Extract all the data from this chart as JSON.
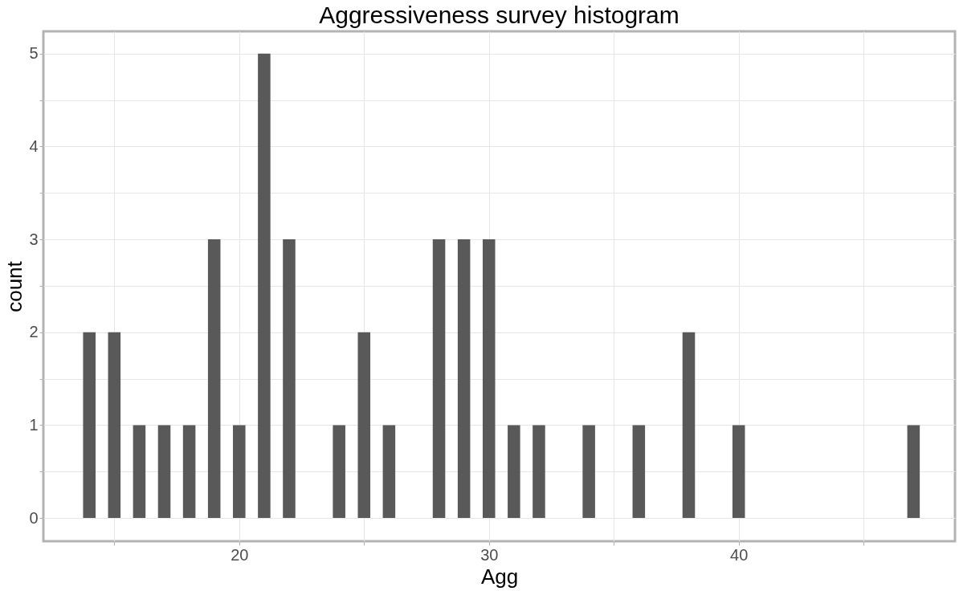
{
  "chart_data": {
    "type": "histogram",
    "title": "Aggressiveness survey histogram",
    "xlabel": "Agg",
    "ylabel": "count",
    "color": "#595959",
    "bins": [
      13.75,
      14.25,
      14.75,
      15.25,
      15.75,
      16.25,
      16.75,
      17.25,
      17.75,
      18.25,
      18.75,
      19.25,
      19.75,
      20.25,
      20.75,
      21.25,
      21.75,
      22.25,
      22.75,
      23.25,
      23.75,
      24.25,
      24.75,
      25.25,
      25.75,
      26.25,
      26.75,
      27.25,
      27.75,
      28.25,
      28.75,
      29.25,
      29.75,
      30.25,
      30.75,
      31.25,
      31.75,
      32.25,
      32.75,
      33.25,
      33.75,
      34.25,
      34.75,
      35.25,
      35.75,
      36.25,
      36.75,
      37.25,
      37.75,
      38.25,
      38.75,
      39.25,
      39.75,
      40.25,
      40.75,
      41.25,
      41.75,
      42.25,
      42.75,
      43.25,
      43.75,
      44.25,
      44.75,
      45.25,
      45.75,
      46.25,
      46.75,
      47.25
    ],
    "values": [
      2,
      0,
      2,
      0,
      1,
      0,
      1,
      0,
      1,
      0,
      3,
      0,
      1,
      0,
      5,
      0,
      3,
      0,
      0,
      0,
      1,
      0,
      2,
      0,
      1,
      0,
      0,
      0,
      3,
      0,
      3,
      0,
      3,
      0,
      1,
      0,
      1,
      0,
      0,
      0,
      1,
      0,
      0,
      0,
      1,
      0,
      0,
      0,
      2,
      0,
      0,
      0,
      1,
      0,
      0,
      0,
      0,
      0,
      0,
      0,
      0,
      0,
      0,
      0,
      0,
      0,
      1
    ],
    "xlim": [
      12.16,
      48.66
    ],
    "xticks": [
      {
        "value": 15,
        "label": null
      },
      20,
      {
        "value": 25,
        "label": null
      },
      30,
      {
        "value": 35,
        "label": null
      },
      40,
      {
        "value": 45,
        "label": null
      }
    ],
    "ylim": [
      -0.25,
      5.24
    ],
    "yticks": [
      0,
      {
        "value": 0.5,
        "label": null
      },
      1,
      {
        "value": 1.5,
        "label": null
      },
      2,
      {
        "value": 2.5,
        "label": null
      },
      3,
      {
        "value": 3.5,
        "label": null
      },
      4,
      {
        "value": 4.5,
        "label": null
      },
      5
    ],
    "grid": true
  }
}
